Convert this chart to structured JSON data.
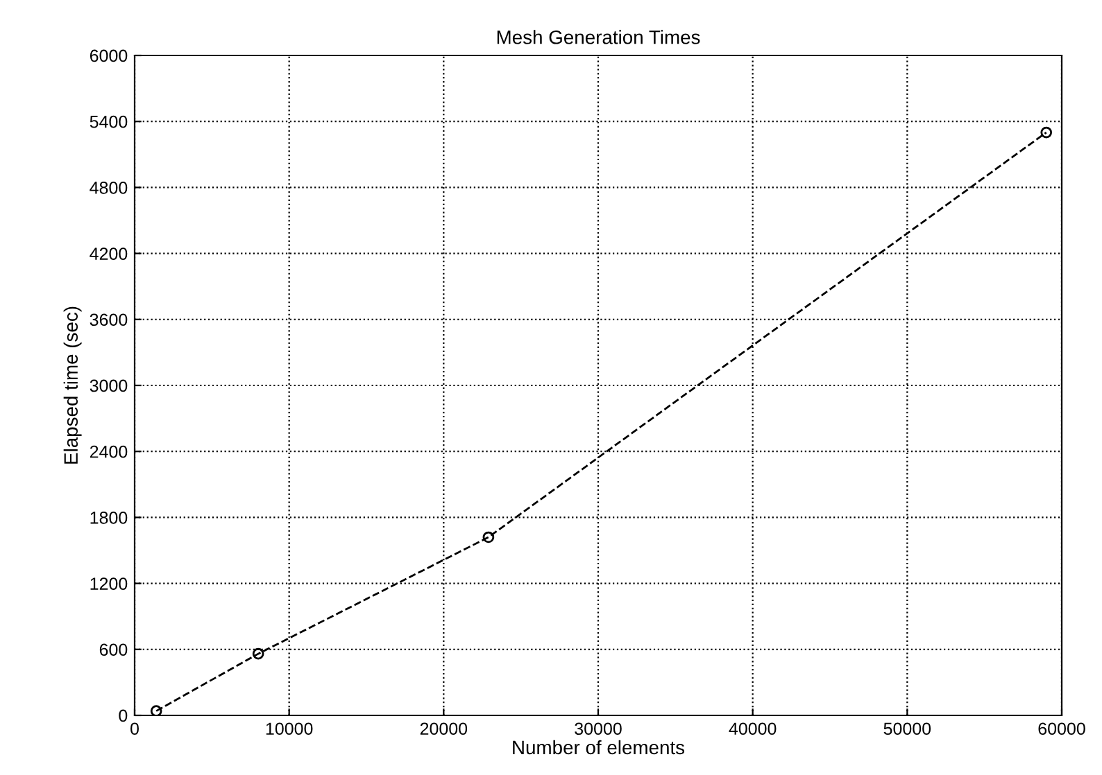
{
  "chart_data": {
    "type": "line",
    "title": "Mesh Generation Times",
    "xlabel": "Number of elements",
    "ylabel": "Elapsed time (sec)",
    "x": [
      1400,
      8000,
      22900,
      59000
    ],
    "series": [
      {
        "color": "#000000",
        "values": [
          40,
          560,
          1620,
          5300
        ]
      }
    ],
    "xlim": [
      0,
      60000
    ],
    "xticks": [
      0,
      10000,
      20000,
      30000,
      40000,
      50000,
      60000
    ],
    "ylim": [
      0,
      6000
    ],
    "yticks": [
      0,
      600,
      1200,
      1800,
      2400,
      3000,
      3600,
      4200,
      4800,
      5400,
      6000
    ],
    "grid": true,
    "marker": "circle",
    "line_style": "dashed",
    "legend": false
  }
}
